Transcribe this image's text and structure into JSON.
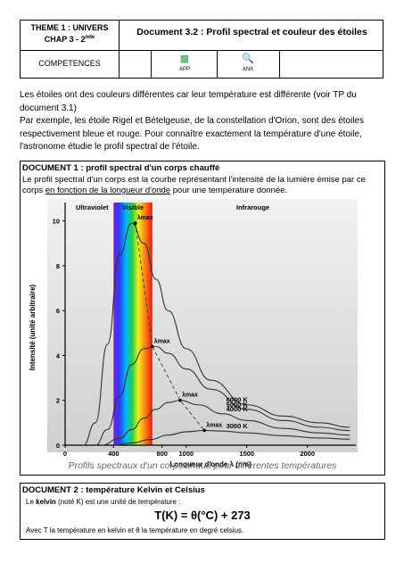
{
  "header": {
    "theme_line1": "THEME 1 : UNIVERS",
    "theme_line2": "CHAP 3 - 2",
    "theme_sup": "nde",
    "title": "Document 3.2 : Profil spectral et couleur des étoiles",
    "competences": "COMPETENCES",
    "skills": [
      {
        "label": "APP",
        "icon": "book-icon"
      },
      {
        "label": "ANA",
        "icon": "magnifier-icon"
      }
    ]
  },
  "intro": [
    "Les étoiles ont des couleurs différentes car leur température est différente (voir TP du document 3.1)",
    "Par exemple, les étoile Rigel et Bételgeuse, de la constellation d'Orion, sont des étoiles respectivement bleue et rouge. Pour connaître exactement la température d'une étoile, l'astronome étudie le profil spectral de l'étoile."
  ],
  "doc1": {
    "heading": "DOCUMENT 1 : profil spectral d'un corps chauffé",
    "text_before": "Le profil spectral d'un corps est la courbe représentant l'intensité de la lumière émise par ce corps ",
    "text_underlined": "en fonction de la longueur d'onde",
    "text_after": " pour une température donnée."
  },
  "chart_data": {
    "type": "line",
    "caption": "Profils spectraux d'un corps chaud pour différentes températures",
    "xlabel": "Longueur d'onde λ (nm)",
    "ylabel": "Intensité (unité arbitraire)",
    "xlim": [
      0,
      2400
    ],
    "ylim": [
      0,
      10.5
    ],
    "xticks": [
      0,
      400,
      800,
      1000,
      1500,
      2000
    ],
    "yticks": [
      0,
      2,
      4,
      6,
      8,
      10
    ],
    "regions": [
      {
        "label": "Ultraviolet",
        "from": 0,
        "to": 400
      },
      {
        "label": "Visible",
        "from": 400,
        "to": 720
      },
      {
        "label": "Infrarouge",
        "from": 720,
        "to": 2400
      }
    ],
    "peak_label": "λmax",
    "series": [
      {
        "name": "6000 K",
        "x": [
          150,
          250,
          350,
          450,
          550,
          650,
          750,
          850,
          1000,
          1200,
          1500,
          1800,
          2100,
          2350
        ],
        "y": [
          0.0,
          1.0,
          4.5,
          8.5,
          9.9,
          9.0,
          7.4,
          6.0,
          4.3,
          2.9,
          1.8,
          1.3,
          1.0,
          0.8
        ]
      },
      {
        "name": "5000 K",
        "x": [
          250,
          350,
          450,
          550,
          650,
          750,
          850,
          1000,
          1200,
          1500,
          1800,
          2100,
          2350
        ],
        "y": [
          0.0,
          0.7,
          2.2,
          3.6,
          4.3,
          4.4,
          4.1,
          3.4,
          2.5,
          1.6,
          1.1,
          0.8,
          0.65
        ]
      },
      {
        "name": "4000 K",
        "x": [
          300,
          450,
          550,
          650,
          750,
          850,
          950,
          1100,
          1300,
          1500,
          1800,
          2100,
          2350
        ],
        "y": [
          0.0,
          0.3,
          0.7,
          1.2,
          1.6,
          1.9,
          2.0,
          1.8,
          1.4,
          1.1,
          0.75,
          0.55,
          0.45
        ]
      },
      {
        "name": "3000 K",
        "x": [
          400,
          550,
          700,
          850,
          1000,
          1150,
          1300,
          1500,
          1800,
          2100,
          2350
        ],
        "y": [
          0.0,
          0.1,
          0.25,
          0.45,
          0.6,
          0.66,
          0.63,
          0.55,
          0.42,
          0.32,
          0.27
        ]
      }
    ],
    "peaks": [
      {
        "x": 580,
        "y": 9.9
      },
      {
        "x": 720,
        "y": 4.4
      },
      {
        "x": 950,
        "y": 2.0
      },
      {
        "x": 1150,
        "y": 0.66
      }
    ]
  },
  "doc2": {
    "heading": "DOCUMENT 2 : température Kelvin et Celsius",
    "line1_before": "Le ",
    "line1_bold": "kelvin",
    "line1_after": " (noté K) est une unité de température :",
    "formula": "T(K) = θ(°C) + 273",
    "line2": "Avec T la température en kelvin et θ la température en degré celsius."
  }
}
